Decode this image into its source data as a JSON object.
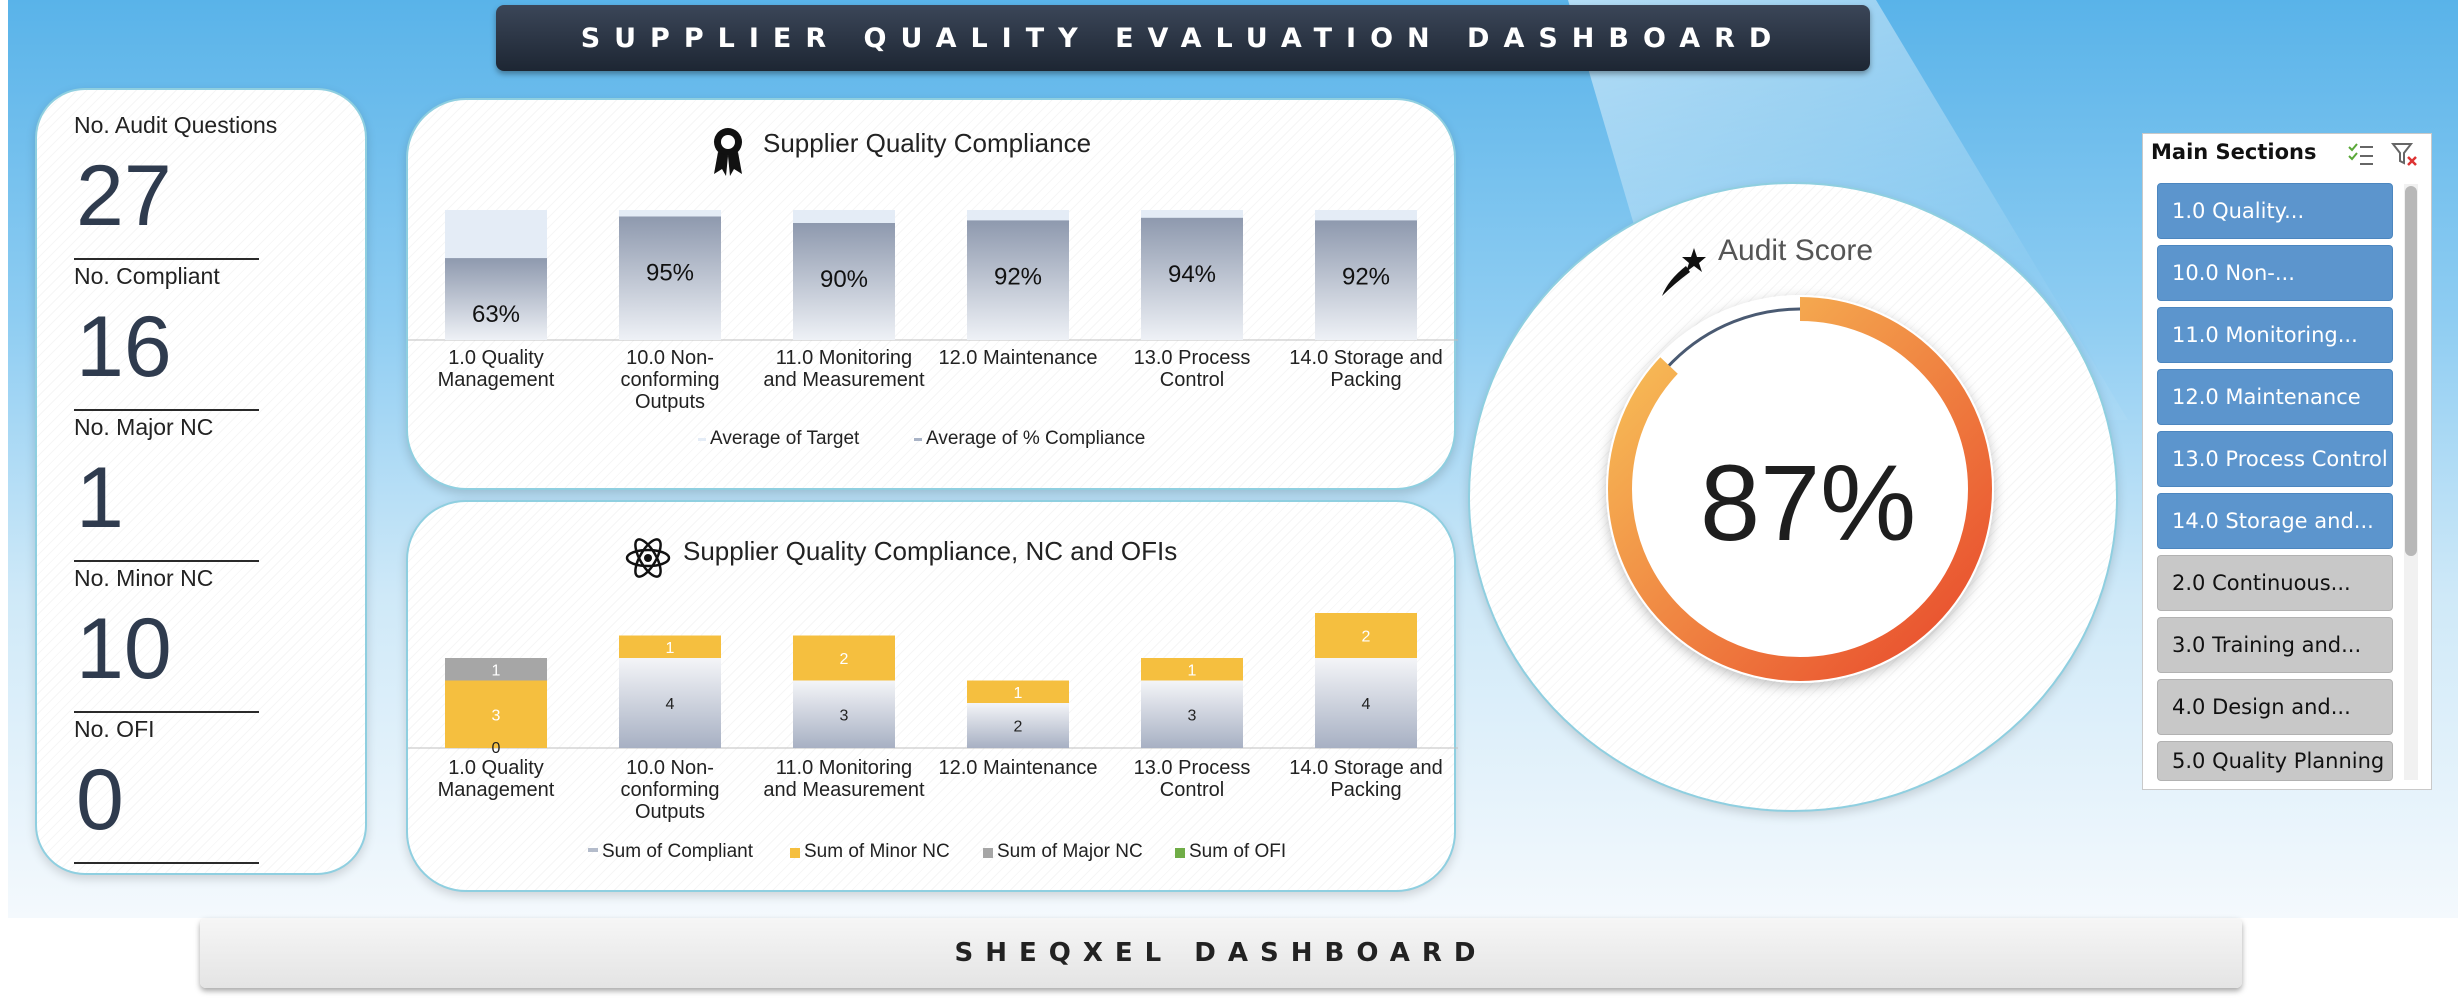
{
  "header": {
    "title": "SUPPLIER QUALITY EVALUATION DASHBOARD"
  },
  "footer": {
    "title": "SHEQXEL DASHBOARD"
  },
  "kpis": [
    {
      "label": "No. Audit Questions",
      "value": "27"
    },
    {
      "label": "No. Compliant",
      "value": "16"
    },
    {
      "label": "No. Major NC",
      "value": "1"
    },
    {
      "label": "No. Minor NC",
      "value": "10"
    },
    {
      "label": "No. OFI",
      "value": "0"
    }
  ],
  "compliance_panel": {
    "title": "Supplier Quality Compliance",
    "icon": "award-ribbon-icon"
  },
  "nc_panel": {
    "title": "Supplier Quality Compliance, NC and OFIs",
    "icon": "atom-icon"
  },
  "audit_score": {
    "title": "Audit Score",
    "value": "87%",
    "icon": "shooting-star-icon"
  },
  "slicer": {
    "header": "Main Sections",
    "icons": [
      "multi-select-icon",
      "clear-filter-icon"
    ],
    "items": [
      {
        "label": "1.0 Quality...",
        "selected": true
      },
      {
        "label": "10.0 Non-...",
        "selected": true
      },
      {
        "label": "11.0 Monitoring...",
        "selected": true
      },
      {
        "label": "12.0 Maintenance",
        "selected": true
      },
      {
        "label": "13.0 Process Control",
        "selected": true
      },
      {
        "label": "14.0 Storage and...",
        "selected": true
      },
      {
        "label": "2.0 Continuous...",
        "selected": false
      },
      {
        "label": "3.0 Training and...",
        "selected": false
      },
      {
        "label": "4.0 Design and...",
        "selected": false
      },
      {
        "label": "5.0 Quality Planning",
        "selected": false
      }
    ]
  },
  "colors": {
    "target_bar": "#e4ecf6",
    "compliance_bar": "#a9b3c6",
    "compliant": "#b4bccb",
    "minor_nc": "#f5bf3f",
    "major_nc": "#a6a6a6",
    "ofi": "#70ad47",
    "gauge_start": "#e8472b",
    "gauge_end": "#f8c65a"
  },
  "chart_data": [
    {
      "type": "bar",
      "categories": [
        [
          "1.0 Quality",
          "Management"
        ],
        [
          "10.0 Non-",
          "conforming",
          "Outputs"
        ],
        [
          "11.0 Monitoring",
          "and Measurement"
        ],
        [
          "12.0 Maintenance"
        ],
        [
          "13.0 Process",
          "Control"
        ],
        [
          "14.0 Storage and",
          "Packing"
        ]
      ],
      "series": [
        {
          "name": "Average of Target",
          "values": [
            1.0,
            1.0,
            1.0,
            1.0,
            1.0,
            1.0
          ]
        },
        {
          "name": "Average of % Compliance",
          "values": [
            0.63,
            0.95,
            0.9,
            0.92,
            0.94,
            0.92
          ]
        }
      ],
      "data_labels": [
        "63%",
        "95%",
        "90%",
        "92%",
        "94%",
        "92%"
      ],
      "ylim": [
        0,
        1.0
      ],
      "legend": "bottom"
    },
    {
      "type": "bar",
      "stacked": true,
      "categories": [
        [
          "1.0 Quality",
          "Management"
        ],
        [
          "10.0 Non-",
          "conforming",
          "Outputs"
        ],
        [
          "11.0 Monitoring",
          "and Measurement"
        ],
        [
          "12.0 Maintenance"
        ],
        [
          "13.0 Process",
          "Control"
        ],
        [
          "14.0 Storage and",
          "Packing"
        ]
      ],
      "series": [
        {
          "name": "Sum of Compliant",
          "values": [
            0,
            4,
            3,
            2,
            3,
            4
          ]
        },
        {
          "name": "Sum of Minor NC",
          "values": [
            3,
            1,
            2,
            1,
            1,
            2
          ]
        },
        {
          "name": "Sum of Major NC",
          "values": [
            1,
            0,
            0,
            0,
            0,
            0
          ]
        },
        {
          "name": "Sum of OFI",
          "values": [
            0,
            0,
            0,
            0,
            0,
            0
          ]
        }
      ],
      "ylim": [
        0,
        7
      ],
      "legend": "bottom"
    }
  ]
}
